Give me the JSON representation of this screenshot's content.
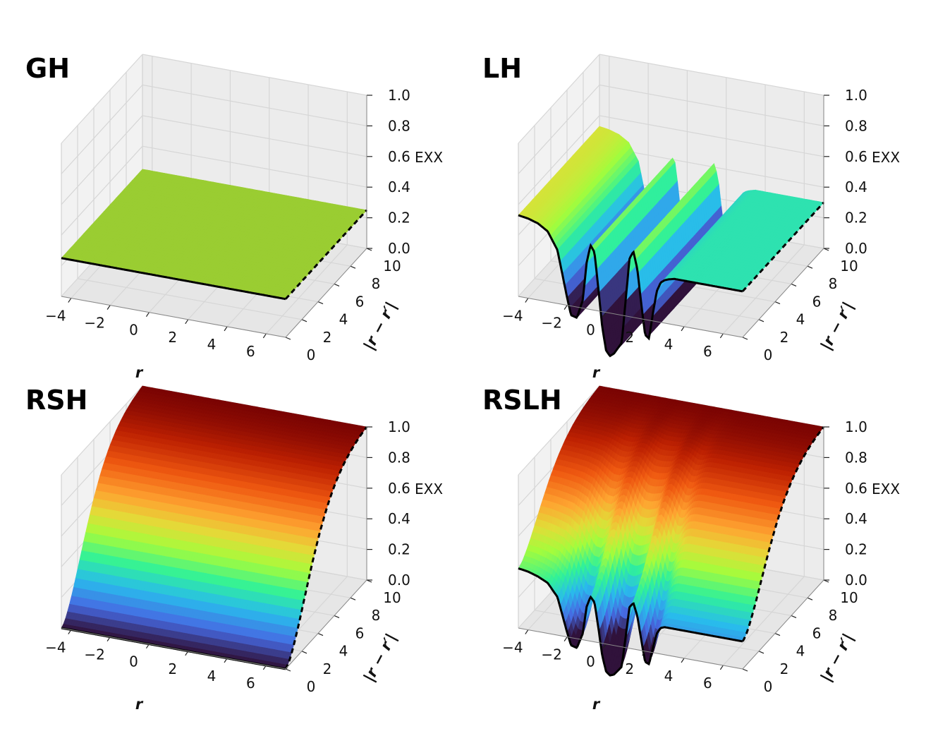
{
  "chart_data": [
    {
      "type": "surface3d",
      "title": "GH",
      "zlabel": "EXX",
      "xlabel": "r",
      "ylabel": "|r − r′|",
      "x_ticks": [
        "−4",
        "−2",
        "0",
        "2",
        "4",
        "6"
      ],
      "y_ticks": [
        "0",
        "2",
        "4",
        "6",
        "8",
        "10"
      ],
      "z_ticks": [
        "0.0",
        "0.2",
        "0.4",
        "0.6",
        "0.8",
        "1.0"
      ],
      "xlim": [
        -4.5,
        7
      ],
      "ylim": [
        0,
        10
      ],
      "zlim": [
        0,
        1
      ],
      "surface": {
        "kind": "constant",
        "value": 0.25,
        "color": "#9acd32"
      }
    },
    {
      "type": "surface3d",
      "title": "LH",
      "zlabel": "EXX",
      "xlabel": "r",
      "ylabel": "|r − r′|",
      "x_ticks": [
        "−4",
        "−2",
        "0",
        "2",
        "4",
        "6"
      ],
      "y_ticks": [
        "0",
        "2",
        "4",
        "6",
        "8",
        "10"
      ],
      "z_ticks": [
        "0.0",
        "0.2",
        "0.4",
        "0.6",
        "0.8",
        "1.0"
      ],
      "xlim": [
        -4.5,
        7
      ],
      "ylim": [
        0,
        10
      ],
      "zlim": [
        0,
        1
      ],
      "surface": {
        "kind": "local",
        "profile_r": [
          -4.5,
          -4,
          -3.5,
          -3,
          -2.5,
          -2,
          -1.8,
          -1.5,
          -1.2,
          -1.0,
          -0.8,
          -0.6,
          -0.4,
          -0.2,
          0,
          0.2,
          0.4,
          0.6,
          0.8,
          1.0,
          1.2,
          1.4,
          1.6,
          1.8,
          2.0,
          2.2,
          2.4,
          2.6,
          2.8,
          3.0,
          3.2,
          3.5,
          4.0,
          4.5,
          5.0,
          5.5,
          6.0,
          7.0
        ],
        "profile_exx": [
          0.53,
          0.52,
          0.5,
          0.46,
          0.35,
          0.05,
          -0.06,
          -0.07,
          0.05,
          0.3,
          0.42,
          0.38,
          0.15,
          -0.1,
          -0.25,
          -0.28,
          -0.26,
          -0.22,
          -0.18,
          0.1,
          0.38,
          0.43,
          0.32,
          0.1,
          -0.1,
          -0.12,
          0.05,
          0.2,
          0.26,
          0.28,
          0.29,
          0.3,
          0.3,
          0.3,
          0.3,
          0.3,
          0.3,
          0.3
        ]
      }
    },
    {
      "type": "surface3d",
      "title": "RSH",
      "zlabel": "EXX",
      "xlabel": "r",
      "ylabel": "|r − r′|",
      "x_ticks": [
        "−4",
        "−2",
        "0",
        "2",
        "4",
        "6"
      ],
      "y_ticks": [
        "0",
        "2",
        "4",
        "6",
        "8",
        "10"
      ],
      "z_ticks": [
        "0.0",
        "0.2",
        "0.4",
        "0.6",
        "0.8",
        "1.0"
      ],
      "xlim": [
        -4.5,
        7
      ],
      "ylim": [
        0,
        10
      ],
      "zlim": [
        0,
        1
      ],
      "surface": {
        "kind": "range-separated",
        "exx_at_0": 0.0,
        "exx_at_10": 1.0
      }
    },
    {
      "type": "surface3d",
      "title": "RSLH",
      "zlabel": "EXX",
      "xlabel": "r",
      "ylabel": "|r − r′|",
      "x_ticks": [
        "−4",
        "−2",
        "0",
        "2",
        "4",
        "6"
      ],
      "y_ticks": [
        "0",
        "2",
        "4",
        "6",
        "8",
        "10"
      ],
      "z_ticks": [
        "0.0",
        "0.2",
        "0.4",
        "0.6",
        "0.8",
        "1.0"
      ],
      "xlim": [
        -4.5,
        7
      ],
      "ylim": [
        0,
        10
      ],
      "zlim": [
        0,
        1
      ],
      "surface": {
        "kind": "range-separated-local",
        "exx_at_10": 1.0,
        "profile_r": [
          -4.5,
          -4,
          -3.5,
          -3,
          -2.5,
          -2,
          -1.8,
          -1.5,
          -1.2,
          -1.0,
          -0.8,
          -0.6,
          -0.4,
          -0.2,
          0,
          0.2,
          0.4,
          0.6,
          0.8,
          1.0,
          1.2,
          1.4,
          1.6,
          1.8,
          2.0,
          2.2,
          2.4,
          2.6,
          2.8,
          3.0,
          3.2,
          3.5,
          4.0,
          4.5,
          5.0,
          5.5,
          6.0,
          7.0
        ],
        "profile_exx": [
          0.39,
          0.38,
          0.36,
          0.33,
          0.25,
          0.03,
          -0.05,
          -0.06,
          0.04,
          0.22,
          0.29,
          0.26,
          0.1,
          -0.08,
          -0.18,
          -0.2,
          -0.19,
          -0.16,
          -0.13,
          0.07,
          0.27,
          0.3,
          0.22,
          0.07,
          -0.07,
          -0.08,
          0.03,
          0.13,
          0.17,
          0.18,
          0.18,
          0.18,
          0.18,
          0.18,
          0.18,
          0.18,
          0.18,
          0.18
        ]
      }
    }
  ]
}
